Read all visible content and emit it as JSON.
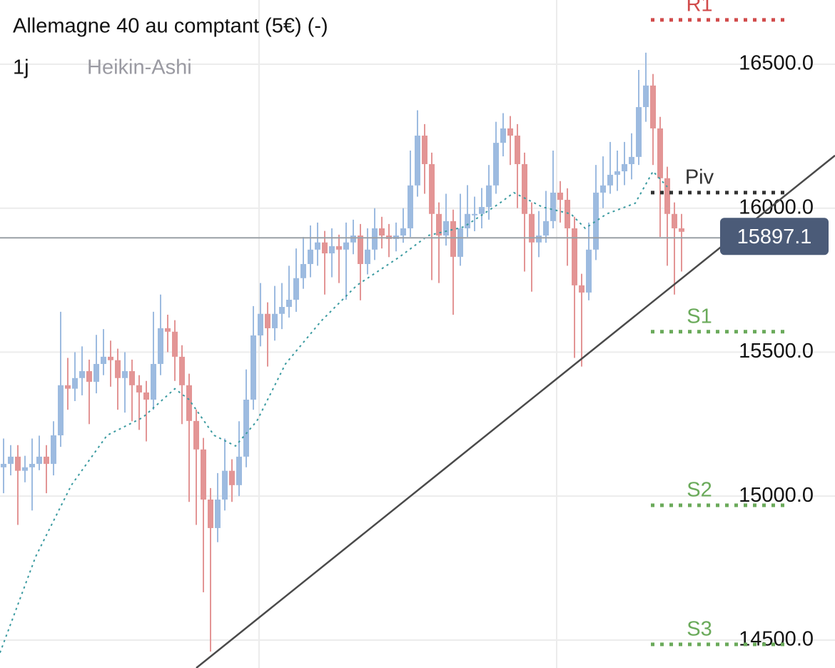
{
  "chart_data": {
    "type": "candlestick",
    "title": "Allemagne 40 au comptant (5€) (-)",
    "interval": "1j",
    "style": "Heikin-Ashi",
    "up_color": "#9dbbe0",
    "down_color": "#e39595",
    "xlim": [
      -0.5,
      116.5
    ],
    "ylim": [
      14403,
      16723
    ],
    "yticks": [
      {
        "value": 14500,
        "label": "14500.0"
      },
      {
        "value": 15000,
        "label": "15000.0"
      },
      {
        "value": 15500,
        "label": "15500.0"
      },
      {
        "value": 16000,
        "label": "16000.0"
      },
      {
        "value": 16500,
        "label": "16500.0"
      }
    ],
    "grid": true,
    "open": [
      15100,
      15112,
      15137,
      15088,
      15100,
      15112,
      15137,
      15112,
      15211,
      15385,
      15373,
      15410,
      15434,
      15397,
      15459,
      15484,
      15472,
      15410,
      15434,
      15385,
      15360,
      15335,
      15459,
      15583,
      15571,
      15484,
      15385,
      15261,
      15162,
      14988,
      14889,
      14988,
      15088,
      15038,
      15137,
      15335,
      15558,
      15633,
      15583,
      15633,
      15657,
      15682,
      15757,
      15806,
      15856,
      15881,
      15843,
      15868,
      15856,
      15881,
      15905,
      15806,
      15856,
      15930,
      15905,
      15893,
      15905,
      15930,
      16079,
      16252,
      16153,
      15980,
      15905,
      15955,
      15831,
      15930,
      15980,
      15980,
      16004,
      16079,
      16227,
      16277,
      16252,
      16153,
      15980,
      15881,
      15905,
      15955,
      16054,
      16029,
      15930,
      15732,
      15707,
      15856,
      16054,
      16079,
      16116,
      16128,
      16153,
      16178,
      16351,
      16426,
      16277,
      16104,
      15980,
      15930
    ],
    "high": [
      15200,
      15177,
      15177,
      15140,
      15200,
      15210,
      15177,
      15260,
      15640,
      15480,
      15500,
      15520,
      15474,
      15560,
      15580,
      15540,
      15512,
      15500,
      15474,
      15420,
      15400,
      15640,
      15700,
      15630,
      15611,
      15524,
      15425,
      15301,
      15202,
      15028,
      15080,
      15200,
      15128,
      15260,
      15440,
      15660,
      15740,
      15673,
      15730,
      15740,
      15800,
      15860,
      15900,
      15940,
      15950,
      15921,
      15930,
      15908,
      15950,
      15960,
      15945,
      15930,
      16000,
      15970,
      15945,
      15950,
      16000,
      16200,
      16340,
      16292,
      16193,
      16020,
      16050,
      15995,
      16050,
      16080,
      16040,
      16070,
      16150,
      16300,
      16330,
      16320,
      16292,
      16193,
      16020,
      15990,
      16060,
      16200,
      16094,
      16069,
      15970,
      15772,
      15950,
      16150,
      16180,
      16230,
      16200,
      16230,
      16260,
      16480,
      16540,
      16466,
      16317,
      16144,
      16020,
      15980
    ],
    "low": [
      15010,
      15072,
      14900,
      15048,
      14950,
      15090,
      15010,
      15072,
      15171,
      15300,
      15330,
      15350,
      15250,
      15357,
      15420,
      15380,
      15300,
      15290,
      15260,
      15230,
      15190,
      15300,
      15420,
      15500,
      15400,
      15250,
      14980,
      14900,
      14666,
      14460,
      14840,
      14950,
      14980,
      15000,
      15100,
      15300,
      15520,
      15450,
      15540,
      15580,
      15620,
      15640,
      15720,
      15760,
      15800,
      15700,
      15760,
      15740,
      15682,
      15840,
      15680,
      15770,
      15820,
      15860,
      15830,
      15850,
      15880,
      15900,
      16040,
      16050,
      15750,
      15740,
      15870,
      15630,
      15800,
      15900,
      15920,
      15930,
      15960,
      16050,
      16180,
      16150,
      16000,
      15780,
      15710,
      15830,
      15880,
      15930,
      15950,
      15800,
      15480,
      15450,
      15680,
      15820,
      16000,
      16050,
      16060,
      16080,
      16100,
      16150,
      16300,
      16150,
      15900,
      15800,
      15700,
      15780
    ],
    "close": [
      15112,
      15137,
      15088,
      15100,
      15112,
      15137,
      15112,
      15211,
      15385,
      15373,
      15410,
      15434,
      15397,
      15459,
      15484,
      15472,
      15410,
      15434,
      15385,
      15360,
      15335,
      15459,
      15583,
      15571,
      15484,
      15385,
      15261,
      15162,
      14988,
      14889,
      14988,
      15088,
      15038,
      15137,
      15335,
      15558,
      15633,
      15583,
      15633,
      15657,
      15682,
      15757,
      15806,
      15856,
      15881,
      15843,
      15868,
      15856,
      15881,
      15905,
      15806,
      15856,
      15930,
      15905,
      15893,
      15905,
      15930,
      16079,
      16252,
      16153,
      15980,
      15905,
      15955,
      15831,
      15930,
      15980,
      15980,
      16004,
      16079,
      16227,
      16277,
      16252,
      16153,
      15980,
      15881,
      15905,
      15955,
      16054,
      16029,
      15930,
      15732,
      15707,
      15856,
      16054,
      16079,
      16116,
      16128,
      16153,
      16178,
      16351,
      16426,
      16277,
      16104,
      15980,
      15930,
      15918
    ],
    "moving_average": {
      "color": "#3a9aa0",
      "x": [
        -0.5,
        4.5,
        9.5,
        14.5,
        19.5,
        24,
        26,
        29.5,
        32.5,
        35.5,
        39.5,
        44.5,
        49.5,
        55.5,
        59.5,
        64.5,
        69.5,
        71.5,
        75.5,
        79.5,
        81.5,
        84.5,
        88.5,
        91,
        93
      ],
      "values": [
        14456,
        14790,
        15038,
        15211,
        15273,
        15373,
        15335,
        15211,
        15174,
        15261,
        15459,
        15608,
        15732,
        15831,
        15905,
        15935,
        16017,
        16054,
        16004,
        15980,
        15930,
        15980,
        16017,
        16128,
        16074
      ]
    },
    "trendline": {
      "color": "#4a4a4a",
      "x": [
        27,
        116.5
      ],
      "y": [
        14403,
        16183
      ]
    },
    "levels": [
      {
        "label": "R1",
        "value": 16654,
        "color": "#d14b4b"
      },
      {
        "label": "Piv",
        "value": 16054,
        "color": "#333333"
      },
      {
        "label": "S1",
        "value": 15571,
        "color": "#6aaa5a"
      },
      {
        "label": "S2",
        "value": 14968,
        "color": "#6aaa5a"
      },
      {
        "label": "S3",
        "value": 14485,
        "color": "#6aaa5a"
      }
    ],
    "last_price": 15897.1,
    "last_price_color": "#4b5b78"
  }
}
